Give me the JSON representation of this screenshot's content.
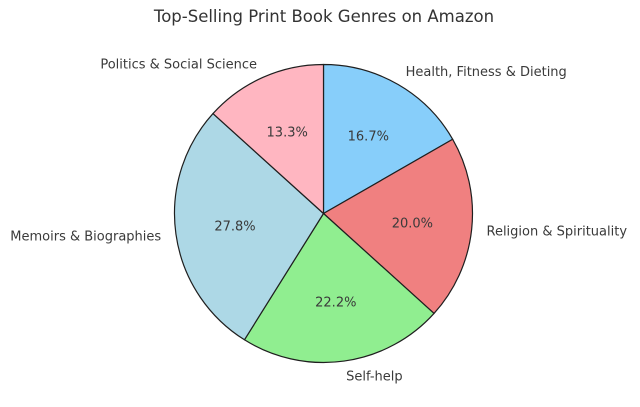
{
  "title": "Top-Selling Print Book Genres on Amazon",
  "chart_data": {
    "type": "pie",
    "title": "Top-Selling Print Book Genres on Amazon",
    "slices": [
      {
        "label": "Health, Fitness & Dieting",
        "value": 16.7,
        "pct_label": "16.7%",
        "color": "#87CEFA"
      },
      {
        "label": "Religion & Spirituality",
        "value": 20.0,
        "pct_label": "20.0%",
        "color": "#F08080"
      },
      {
        "label": "Self-help",
        "value": 22.2,
        "pct_label": "22.2%",
        "color": "#90EE90"
      },
      {
        "label": "Memoirs & Biographies",
        "value": 27.8,
        "pct_label": "27.8%",
        "color": "#ADD8E6"
      },
      {
        "label": "Politics & Social Science",
        "value": 13.3,
        "pct_label": "13.3%",
        "color": "#FFB6C1"
      }
    ],
    "start_angle": 90,
    "direction": "clockwise",
    "edge_color": "#1f1f1f",
    "text_color": "#3a3a3a",
    "label_distance": 1.1,
    "pct_distance": 0.6,
    "legend": "none",
    "background": "#ffffff"
  }
}
